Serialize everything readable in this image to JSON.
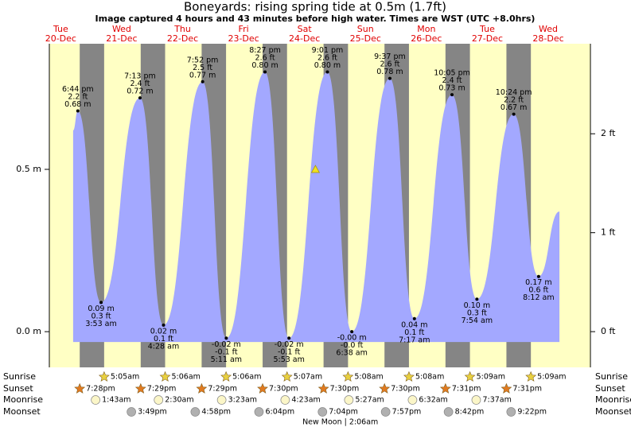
{
  "chart_data": {
    "type": "area",
    "title": "Boneyards: rising  spring tide at 0.5m (1.7ft)",
    "subtitle": "Image captured 4 hours and 43 minutes before high water. Times are WST (UTC +8.0hrs)",
    "days": {
      "weekdays": [
        "Tue",
        "Wed",
        "Thu",
        "Fri",
        "Sat",
        "Sun",
        "Mon",
        "Tue",
        "Wed"
      ],
      "dates": [
        "20-Dec",
        "21-Dec",
        "22-Dec",
        "23-Dec",
        "24-Dec",
        "25-Dec",
        "26-Dec",
        "27-Dec",
        "28-Dec"
      ]
    },
    "xlim": [
      7.5,
      220.6
    ],
    "ylim": [
      -0.11,
      0.887
    ],
    "yticks": [
      {
        "value": 0,
        "label": "0.0 m"
      },
      {
        "value": 0.5,
        "label": "0.5 m"
      }
    ],
    "y2lim": [
      -0.361,
      2.91
    ],
    "y2ticks": [
      {
        "value": 0,
        "label": "0 ft"
      },
      {
        "value": 1,
        "label": "1 ft"
      },
      {
        "value": 2,
        "label": "2 ft"
      }
    ],
    "color": "#a3a8ff",
    "night_color": "#858585",
    "tides": {
      "x": [
        16.87,
        18.733,
        27.883,
        43.217,
        52.467,
        67.867,
        77.183,
        92.45,
        101.883,
        117.017,
        126.633,
        141.617,
        151.283,
        166.083,
        175.9,
        190.4,
        200.2,
        208.4
      ],
      "values": [
        0.62,
        0.68,
        0.09,
        0.72,
        0.02,
        0.77,
        -0.02,
        0.8,
        -0.02,
        0.8,
        -0.0,
        0.78,
        0.04,
        0.73,
        0.1,
        0.67,
        0.17,
        0.37
      ],
      "value_labels": [
        null,
        "0.68 m",
        "0.09 m",
        "0.72 m",
        "0.02 m",
        "0.77 m",
        "-0.02 m",
        "0.80 m",
        "-0.02 m",
        "0.80 m",
        "-0.00 m",
        "0.78 m",
        "0.04 m",
        "0.73 m",
        "0.10 m",
        "0.67 m",
        "0.17 m",
        null
      ],
      "ft_labels": [
        null,
        "2.2 ft",
        "0.3 ft",
        "2.4 ft",
        "0.1 ft",
        "2.5 ft",
        "-0.1 ft",
        "2.6 ft",
        "-0.1 ft",
        "2.6 ft",
        "-0.0 ft",
        "2.6 ft",
        "0.1 ft",
        "2.4 ft",
        "0.3 ft",
        "2.2 ft",
        "0.6 ft",
        null
      ],
      "time_labels": [
        null,
        "6:44 pm",
        "3:53 am",
        "7:13 pm",
        "4:28 am",
        "7:52 pm",
        "5:11 am",
        "8:27 pm",
        "5:53 am",
        "9:01 pm",
        "6:38 am",
        "9:37 pm",
        "7:17 am",
        "10:05 pm",
        "7:54 am",
        "10:24 pm",
        "8:12 am",
        null
      ]
    },
    "now": {
      "x": 112.3,
      "value": 0.5,
      "color": "#f0e020"
    },
    "rows": [
      {
        "label": "Sunrise",
        "color": "#e8d040",
        "times": [
          "5:05am",
          "5:06am",
          "5:06am",
          "5:07am",
          "5:08am",
          "5:08am",
          "5:09am",
          "5:09am"
        ],
        "x": [
          29.083,
          53.1,
          77.1,
          101.117,
          125.133,
          149.133,
          173.15,
          197.15
        ]
      },
      {
        "label": "Sunset",
        "color": "#e07a20",
        "times": [
          "7:28pm",
          "7:29pm",
          "7:29pm",
          "7:30pm",
          "7:30pm",
          "7:30pm",
          "7:31pm",
          "7:31pm"
        ],
        "x": [
          19.467,
          43.483,
          67.483,
          91.5,
          115.5,
          139.5,
          163.517,
          187.517
        ]
      },
      {
        "label": "Moonrise",
        "color": "#fbf6c8",
        "times": [
          "1:43am",
          "2:30am",
          "3:23am",
          "4:23am",
          "5:27am",
          "6:32am",
          "7:37am"
        ],
        "x": [
          25.717,
          50.5,
          75.383,
          100.383,
          125.45,
          150.533,
          175.617
        ]
      },
      {
        "label": "Moonset",
        "color": "#b0b0b0",
        "times": [
          "3:49pm",
          "4:58pm",
          "6:04pm",
          "7:04pm",
          "7:57pm",
          "8:42pm",
          "9:22pm"
        ],
        "x": [
          39.817,
          64.967,
          90.067,
          115.067,
          139.95,
          164.7,
          189.367
        ]
      }
    ],
    "moon_phase": {
      "label": "New Moon | 2:06am",
      "x": 122.1
    }
  }
}
